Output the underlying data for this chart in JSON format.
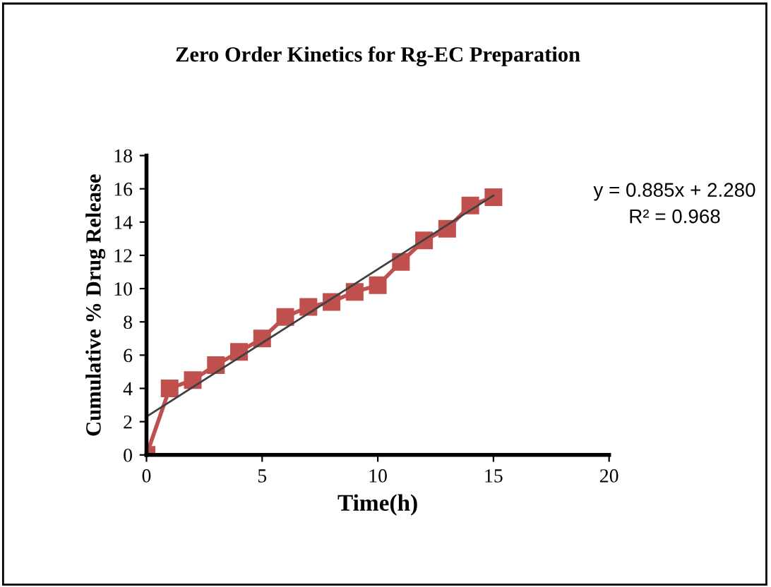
{
  "chart_data": {
    "type": "line",
    "title": "Zero Order Kinetics for Rg-EC Preparation",
    "xlabel": "Time(h)",
    "ylabel": "Cumulative % Drug Release",
    "x": [
      0,
      1,
      2,
      3,
      4,
      5,
      6,
      7,
      8,
      9,
      10,
      11,
      12,
      13,
      14,
      15
    ],
    "series": [
      {
        "color": "#c0504d",
        "marker": "square",
        "values": [
          0,
          4.0,
          4.5,
          5.4,
          6.2,
          7.0,
          8.3,
          8.9,
          9.2,
          9.8,
          10.2,
          11.6,
          12.9,
          13.6,
          15.0,
          15.5
        ]
      },
      {
        "type": "line",
        "color": "#404040",
        "marker": "none",
        "x": [
          0,
          15
        ],
        "values": [
          2.3,
          15.6
        ]
      }
    ],
    "annotations": [
      "y = 0.885x + 2.280",
      "R² = 0.968"
    ],
    "xlim": [
      0,
      20
    ],
    "xticks": [
      0,
      5,
      10,
      15,
      20
    ],
    "ylim": [
      0,
      18
    ],
    "yticks": [
      0,
      2,
      4,
      6,
      8,
      10,
      12,
      14,
      16,
      18
    ]
  }
}
